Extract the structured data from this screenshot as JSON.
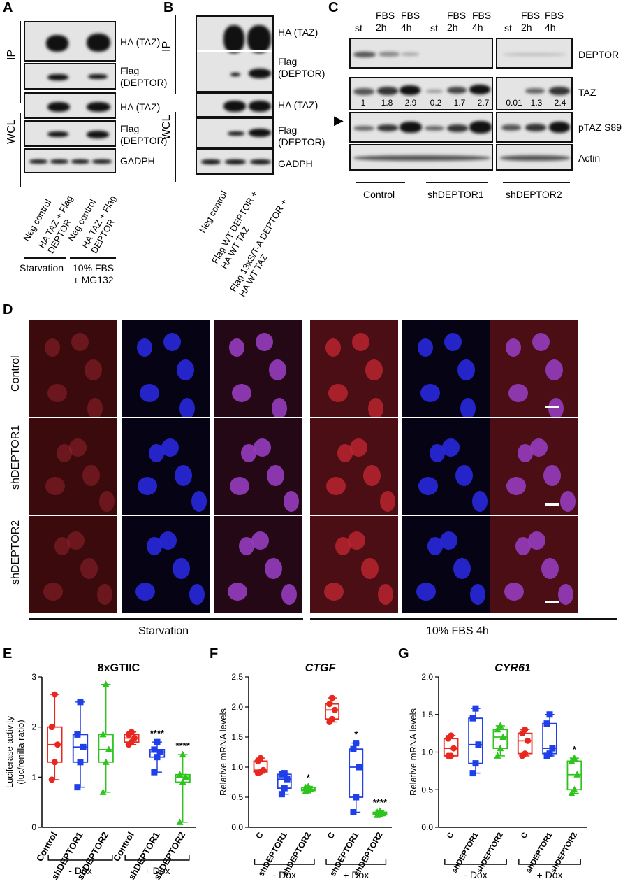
{
  "panels": {
    "A": "A",
    "B": "B",
    "C": "C",
    "D": "D",
    "E": "E",
    "F": "F",
    "G": "G"
  },
  "panelA": {
    "side_labels": {
      "ip": "IP",
      "wcl": "WCL"
    },
    "blot_labels": [
      "HA (TAZ)",
      "Flag\n(DEPTOR)",
      "HA (TAZ)",
      "Flag\n(DEPTOR)",
      "GADPH"
    ],
    "lanes": [
      "Neg control",
      "HA TAZ + Flag\nDEPTOR",
      "Neg control",
      "HA TAZ + Flag\nDEPTOR"
    ],
    "groups": [
      "Starvation",
      "10% FBS\n+ MG132"
    ]
  },
  "panelB": {
    "side_labels": {
      "ip": "IP",
      "wcl": "WCL"
    },
    "blot_labels": [
      "HA (TAZ)",
      "Flag\n(DEPTOR)",
      "HA (TAZ)",
      "Flag\n(DEPTOR)",
      "GADPH"
    ],
    "lanes": [
      "Neg control",
      "Flag WT DEPTOR +\nHA WT TAZ",
      "Flag 13xS/T-A DEPTOR +\nHA WT TAZ"
    ]
  },
  "panelC": {
    "lanes": [
      "st",
      "FBS\n2h",
      "FBS\n4h",
      "st",
      "FBS\n2h",
      "FBS\n4h",
      "st",
      "FBS\n2h",
      "FBS\n4h"
    ],
    "blot_labels": [
      "DEPTOR",
      "TAZ",
      "pTAZ S89",
      "Actin"
    ],
    "taz_quant": [
      "1",
      "1.8",
      "2.9",
      "0.2",
      "1.7",
      "2.7",
      "0.01",
      "1.3",
      "2.4"
    ],
    "arrow": "▶",
    "groups": [
      "Control",
      "shDEPTOR1",
      "shDEPTOR2"
    ]
  },
  "panelD": {
    "rows": [
      "Control",
      "shDEPTOR1",
      "shDEPTOR2"
    ],
    "conditions": [
      "Starvation",
      "10% FBS 4h"
    ]
  },
  "chart_data": [
    {
      "panel": "E",
      "type": "box",
      "title": "8xGTIIC",
      "ylabel": "Luciferase activity\n(luc/renilla ratio)",
      "ylim": [
        0,
        3
      ],
      "yticks": [
        0,
        1,
        2,
        3
      ],
      "categories": [
        "Control",
        "shDEPTOR1",
        "shDEPTOR2",
        "Control",
        "shDEPTOR1",
        "shDEPTOR2"
      ],
      "groups": [
        "- Dox",
        "+ Dox"
      ],
      "colors": [
        "#e8281e",
        "#1f3fe8",
        "#2ec41e",
        "#e8281e",
        "#1f3fe8",
        "#2ec41e"
      ],
      "boxes": [
        {
          "min": 0.95,
          "q1": 1.3,
          "median": 1.65,
          "q3": 2.0,
          "max": 2.65
        },
        {
          "min": 0.8,
          "q1": 1.3,
          "median": 1.6,
          "q3": 1.85,
          "max": 2.5
        },
        {
          "min": 0.7,
          "q1": 1.3,
          "median": 1.55,
          "q3": 1.85,
          "max": 2.85
        },
        {
          "min": 1.65,
          "q1": 1.7,
          "median": 1.78,
          "q3": 1.85,
          "max": 1.9
        },
        {
          "min": 1.1,
          "q1": 1.4,
          "median": 1.5,
          "q3": 1.55,
          "max": 1.7
        },
        {
          "min": 0.1,
          "q1": 0.9,
          "median": 1.0,
          "q3": 1.05,
          "max": 1.45
        }
      ],
      "markers": [
        "circle",
        "square",
        "triangle",
        "circle",
        "square",
        "triangle"
      ],
      "significance": [
        "",
        "",
        "",
        "",
        "****",
        "****"
      ]
    },
    {
      "panel": "F",
      "type": "box",
      "title": "CTGF",
      "ylabel": "Relative mRNA levels",
      "ylim": [
        0,
        2.5
      ],
      "yticks": [
        0,
        0.5,
        1.0,
        1.5,
        2.0,
        2.5
      ],
      "ytick_labels": [
        "0.0",
        "0.5",
        "1.0",
        "1.5",
        "2.0",
        "2.5"
      ],
      "categories": [
        "C",
        "shDEPTOR1",
        "shDEPTOR2",
        "C",
        "shDEPTOR1",
        "shDEPTOR2"
      ],
      "groups": [
        "- Dox",
        "+ Dox"
      ],
      "colors": [
        "#e8281e",
        "#1f3fe8",
        "#2ec41e",
        "#e8281e",
        "#1f3fe8",
        "#2ec41e"
      ],
      "boxes": [
        {
          "min": 0.9,
          "q1": 0.92,
          "median": 0.95,
          "q3": 1.1,
          "max": 1.15
        },
        {
          "min": 0.55,
          "q1": 0.65,
          "median": 0.8,
          "q3": 0.88,
          "max": 0.9
        },
        {
          "min": 0.6,
          "q1": 0.61,
          "median": 0.63,
          "q3": 0.66,
          "max": 0.68
        },
        {
          "min": 1.75,
          "q1": 1.8,
          "median": 1.95,
          "q3": 2.05,
          "max": 2.15
        },
        {
          "min": 0.25,
          "q1": 0.5,
          "median": 1.0,
          "q3": 1.3,
          "max": 1.4
        },
        {
          "min": 0.2,
          "q1": 0.21,
          "median": 0.23,
          "q3": 0.25,
          "max": 0.27
        }
      ],
      "markers": [
        "circle",
        "square",
        "triangle",
        "circle",
        "square",
        "triangle"
      ],
      "significance": [
        "",
        "",
        "*",
        "",
        "*",
        "****"
      ]
    },
    {
      "panel": "G",
      "type": "box",
      "title": "CYR61",
      "ylabel": "Relative mRNA levels",
      "ylim": [
        0,
        2.0
      ],
      "yticks": [
        0,
        0.5,
        1.0,
        1.5,
        2.0
      ],
      "ytick_labels": [
        "0.0",
        "0.5",
        "1.0",
        "1.5",
        "2.0"
      ],
      "categories": [
        "C",
        "shDEPTOR1",
        "shDEPTOR2",
        "C",
        "shDEPTOR1",
        "shDEPTOR2"
      ],
      "groups": [
        "- Dox",
        "+ Dox"
      ],
      "colors": [
        "#e8281e",
        "#1f3fe8",
        "#2ec41e",
        "#e8281e",
        "#1f3fe8",
        "#2ec41e"
      ],
      "boxes": [
        {
          "min": 0.95,
          "q1": 0.95,
          "median": 1.05,
          "q3": 1.18,
          "max": 1.22
        },
        {
          "min": 0.72,
          "q1": 0.85,
          "median": 1.1,
          "q3": 1.45,
          "max": 1.58
        },
        {
          "min": 0.95,
          "q1": 1.05,
          "median": 1.2,
          "q3": 1.3,
          "max": 1.35
        },
        {
          "min": 0.95,
          "q1": 0.98,
          "median": 1.15,
          "q3": 1.25,
          "max": 1.3
        },
        {
          "min": 0.95,
          "q1": 0.98,
          "median": 1.05,
          "q3": 1.38,
          "max": 1.5
        },
        {
          "min": 0.45,
          "q1": 0.5,
          "median": 0.7,
          "q3": 0.88,
          "max": 0.92
        }
      ],
      "markers": [
        "circle",
        "square",
        "triangle",
        "circle",
        "square",
        "triangle"
      ],
      "significance": [
        "",
        "",
        "",
        "",
        "",
        "*"
      ]
    }
  ]
}
